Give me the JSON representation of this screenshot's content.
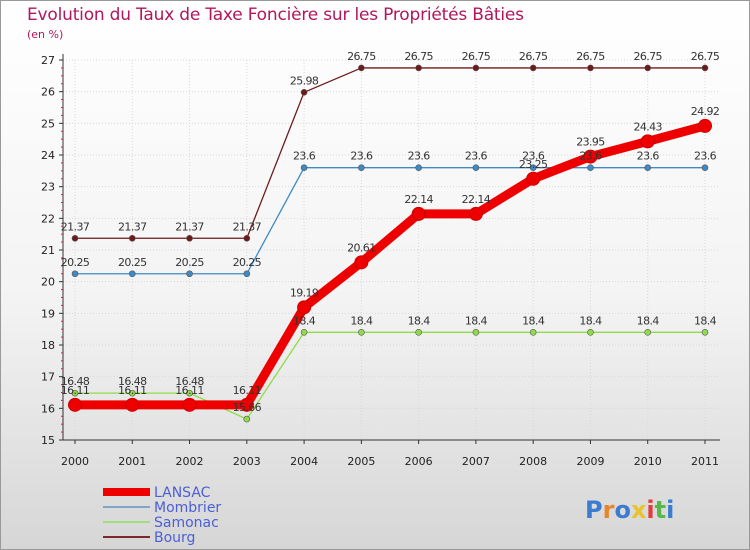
{
  "chart_data": {
    "type": "line",
    "title": "Evolution du Taux de Taxe Foncière sur les Propriétés Bâties",
    "ylabel": "(en %)",
    "xlabel": "",
    "categories": [
      "2000",
      "2001",
      "2002",
      "2003",
      "2004",
      "2005",
      "2006",
      "2007",
      "2008",
      "2009",
      "2010",
      "2011"
    ],
    "ylim": [
      15,
      27
    ],
    "yticks": [
      "15",
      "16",
      "17",
      "18",
      "19",
      "20",
      "21",
      "22",
      "23",
      "24",
      "25",
      "26",
      "27"
    ],
    "series": [
      {
        "name": "Bourg",
        "color": "#6e1a1a",
        "values": [
          21.37,
          21.37,
          21.37,
          21.37,
          25.98,
          26.75,
          26.75,
          26.75,
          26.75,
          26.75,
          26.75,
          26.75
        ],
        "labels": [
          "21.37",
          "21.37",
          "21.37",
          "21.37",
          "25.98",
          "26.75",
          "26.75",
          "26.75",
          "26.75",
          "26.75",
          "26.75",
          "26.75"
        ]
      },
      {
        "name": "Mombrier",
        "color": "#3f8ac4",
        "values": [
          20.25,
          20.25,
          20.25,
          20.25,
          23.6,
          23.6,
          23.6,
          23.6,
          23.6,
          23.6,
          23.6,
          23.6
        ],
        "labels": [
          "20.25",
          "20.25",
          "20.25",
          "20.25",
          "23.6",
          "23.6",
          "23.6",
          "23.6",
          "23.6",
          "23.6",
          "23.6",
          "23.6"
        ]
      },
      {
        "name": "Samonac",
        "color": "#8edc4a",
        "values": [
          16.48,
          16.48,
          16.48,
          15.66,
          18.4,
          18.4,
          18.4,
          18.4,
          18.4,
          18.4,
          18.4,
          18.4
        ],
        "labels": [
          "16.48",
          "16.48",
          "16.48",
          "15.66",
          "18.4",
          "18.4",
          "18.4",
          "18.4",
          "18.4",
          "18.4",
          "18.4",
          "18.4"
        ]
      },
      {
        "name": "LANSAC",
        "color": "#ee0000",
        "values": [
          16.11,
          16.11,
          16.11,
          16.11,
          19.19,
          20.61,
          22.14,
          22.14,
          23.25,
          23.95,
          24.43,
          24.92
        ],
        "labels": [
          "16.11",
          "16.11",
          "16.11",
          "16.11",
          "19.19",
          "20.61",
          "22.14",
          "22.14",
          "23.25",
          "23.95",
          "24.43",
          "24.92"
        ]
      }
    ],
    "legend": [
      {
        "name": "LANSAC",
        "color": "#ee0000"
      },
      {
        "name": "Mombrier",
        "color": "#7ea6c8"
      },
      {
        "name": "Samonac",
        "color": "#9fe07a"
      },
      {
        "name": "Bourg",
        "color": "#7a2a2a"
      }
    ],
    "legend_position": "bottom-left"
  },
  "logo": {
    "text": "Proxiti",
    "colors": [
      "#3a7cd0",
      "#e8842c",
      "#3a7cd0",
      "#e8c32c",
      "#e23d3d",
      "#56b848",
      "#3a7cd0"
    ]
  }
}
